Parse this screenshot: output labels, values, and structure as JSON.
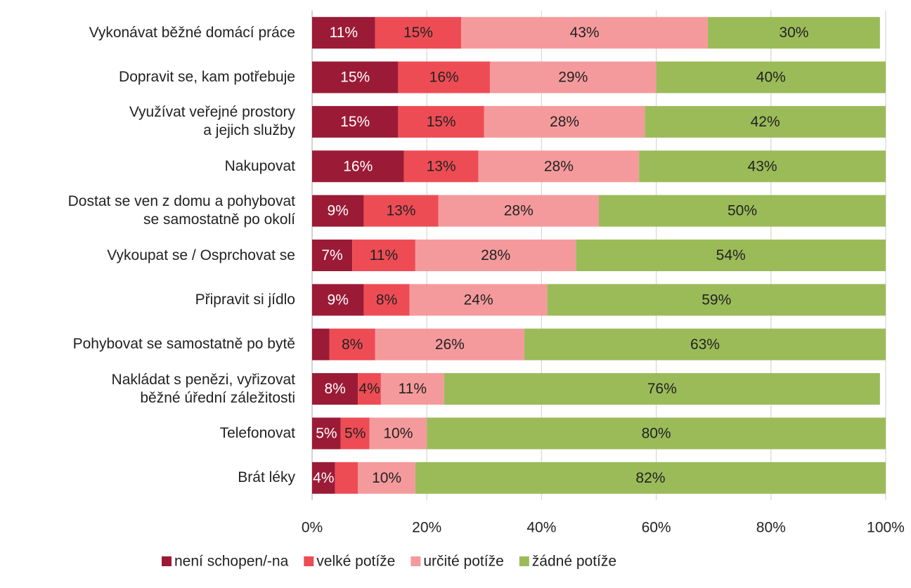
{
  "chart_data": {
    "type": "stacked-barh",
    "categories": [
      "Vykonávat běžné domácí práce",
      "Dopravit se, kam potřebuje",
      "Využívat veřejné prostory\na jejich služby",
      "Nakupovat",
      "Dostat se ven z domu a pohybovat\nse samostatně po okolí",
      "Vykoupat se / Osprchovat se",
      "Připravit si jídlo",
      "Pohybovat se samostatně po bytě",
      "Nakládat s penězi, vyřizovat\nběžné úřední záležitosti",
      "Telefonovat",
      "Brát léky"
    ],
    "series": [
      {
        "name": "není schopen/-na",
        "color": "#9b1b36",
        "label_color": "#ffffff",
        "values": [
          11,
          15,
          15,
          16,
          9,
          7,
          9,
          3,
          8,
          5,
          4
        ],
        "value_labels": [
          "11%",
          "15%",
          "15%",
          "16%",
          "9%",
          "7%",
          "9%",
          null,
          "8%",
          "5%",
          "4%"
        ]
      },
      {
        "name": "velké potíže",
        "color": "#ee4c55",
        "label_color": "#222222",
        "values": [
          15,
          16,
          15,
          13,
          13,
          11,
          8,
          8,
          4,
          5,
          4
        ],
        "value_labels": [
          "15%",
          "16%",
          "15%",
          "13%",
          "13%",
          "11%",
          "8%",
          "8%",
          "4%",
          "5%",
          null
        ]
      },
      {
        "name": "určité potíže",
        "color": "#f59a9c",
        "label_color": "#222222",
        "values": [
          43,
          29,
          28,
          28,
          28,
          28,
          24,
          26,
          11,
          10,
          10
        ],
        "value_labels": [
          "43%",
          "29%",
          "28%",
          "28%",
          "28%",
          "28%",
          "24%",
          "26%",
          "11%",
          "10%",
          "10%"
        ]
      },
      {
        "name": "žádné potíže",
        "color": "#9bbb59",
        "label_color": "#222222",
        "values": [
          30,
          40,
          42,
          43,
          50,
          54,
          59,
          63,
          76,
          80,
          82
        ],
        "value_labels": [
          "30%",
          "40%",
          "42%",
          "43%",
          "50%",
          "54%",
          "59%",
          "63%",
          "76%",
          "80%",
          "82%"
        ]
      }
    ],
    "xlim": [
      0,
      100
    ],
    "xticks": [
      {
        "value": 0,
        "label": "0%"
      },
      {
        "value": 20,
        "label": "20%"
      },
      {
        "value": 40,
        "label": "40%"
      },
      {
        "value": 60,
        "label": "60%"
      },
      {
        "value": 80,
        "label": "80%"
      },
      {
        "value": 100,
        "label": "100%"
      }
    ],
    "grid": true,
    "legend": "bottom"
  }
}
